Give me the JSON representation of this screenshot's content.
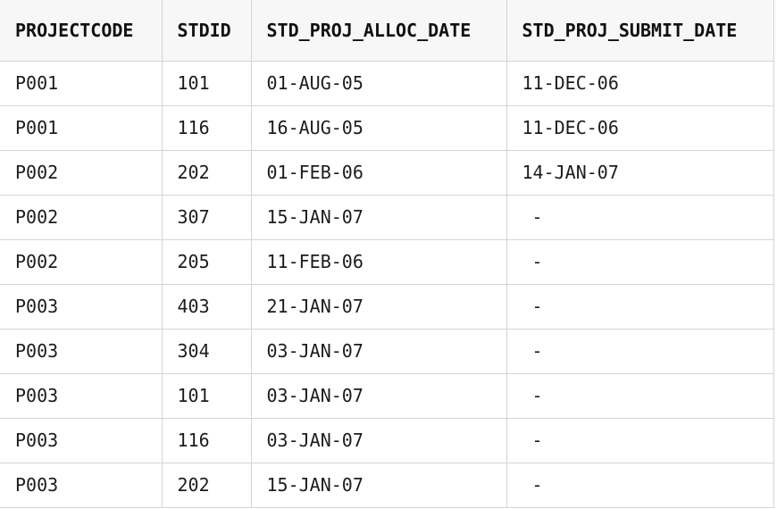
{
  "table": {
    "columns": [
      "PROJECTCODE",
      "STDID",
      "STD_PROJ_ALLOC_DATE",
      "STD_PROJ_SUBMIT_DATE"
    ],
    "rows": [
      [
        "P001",
        "101",
        "01-AUG-05",
        "11-DEC-06"
      ],
      [
        "P001",
        "116",
        "16-AUG-05",
        "11-DEC-06"
      ],
      [
        "P002",
        "202",
        "01-FEB-06",
        "14-JAN-07"
      ],
      [
        "P002",
        "307",
        "15-JAN-07",
        "-"
      ],
      [
        "P002",
        "205",
        "11-FEB-06",
        "-"
      ],
      [
        "P003",
        "403",
        "21-JAN-07",
        "-"
      ],
      [
        "P003",
        "304",
        "03-JAN-07",
        "-"
      ],
      [
        "P003",
        "101",
        "03-JAN-07",
        "-"
      ],
      [
        "P003",
        "116",
        "03-JAN-07",
        "-"
      ],
      [
        "P003",
        "202",
        "15-JAN-07",
        "-"
      ]
    ]
  }
}
